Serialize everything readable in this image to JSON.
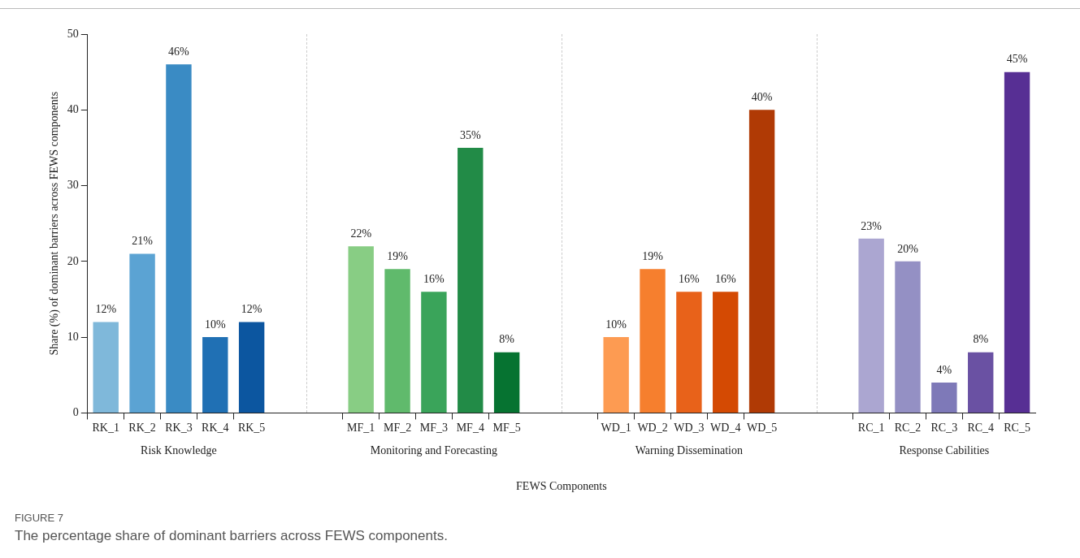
{
  "chart_data": {
    "type": "bar",
    "xlabel": "FEWS Components",
    "ylabel": "Share (%) of dominant barriers across FEWS components",
    "categories": [
      "RK_1",
      "RK_2",
      "RK_3",
      "RK_4",
      "RK_5",
      null,
      null,
      "MF_1",
      "MF_2",
      "MF_3",
      "MF_4",
      "MF_5",
      null,
      null,
      "WD_1",
      "WD_2",
      "WD_3",
      "WD_4",
      "WD_5",
      null,
      null,
      "RC_1",
      "RC_2",
      "RC_3",
      "RC_4",
      "RC_5"
    ],
    "values": [
      12,
      21,
      46,
      10,
      12,
      null,
      null,
      22,
      19,
      16,
      35,
      8,
      null,
      null,
      10,
      19,
      16,
      16,
      40,
      null,
      null,
      23,
      20,
      4,
      8,
      45
    ],
    "value_labels": [
      "12%",
      "21%",
      "46%",
      "10%",
      "12%",
      null,
      null,
      "22%",
      "19%",
      "16%",
      "35%",
      "8%",
      null,
      null,
      "10%",
      "19%",
      "16%",
      "16%",
      "40%",
      null,
      null,
      "23%",
      "20%",
      "4%",
      "8%",
      "45%"
    ],
    "colors": [
      "#7fb8da",
      "#5ba3d3",
      "#3a8bc4",
      "#2070b4",
      "#0c56a0",
      null,
      null,
      "#88cd84",
      "#60ba6c",
      "#3aa45a",
      "#228b47",
      "#067331",
      null,
      null,
      "#fd9b52",
      "#f67f2e",
      "#e8621a",
      "#d44a03",
      "#b03a05",
      null,
      null,
      "#aba6d1",
      "#9490c4",
      "#7e79b8",
      "#6a51a3",
      "#572f94"
    ],
    "ylim": [
      0,
      50
    ],
    "yticks": [
      0,
      10,
      20,
      30,
      40,
      50
    ],
    "grid": false,
    "legend": false,
    "annotations": [
      "Risk Knowledge",
      "Monitoring and Forecasting",
      "Warning Dissemination",
      "Response Cabilities",
      "FIGURE 7",
      "The percentage share of dominant barriers across FEWS components."
    ]
  }
}
